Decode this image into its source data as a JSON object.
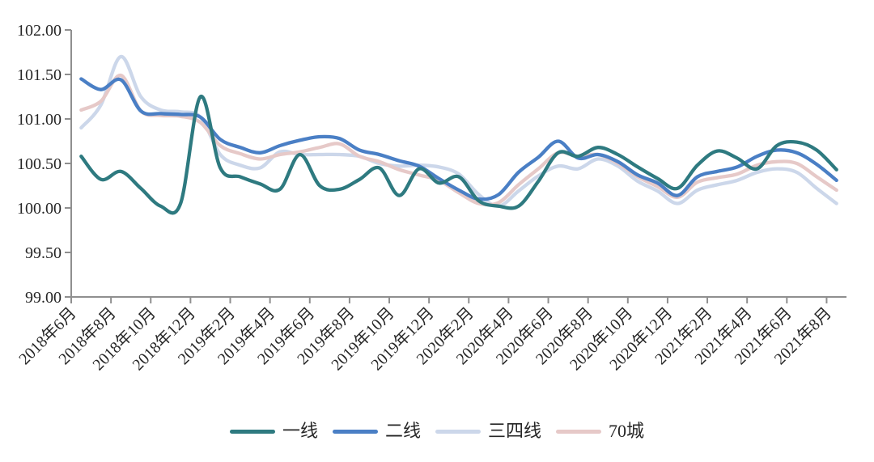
{
  "colors": {
    "background": "#ffffff",
    "axis": "#8f8f8f",
    "text": "#262626"
  },
  "chart_data": {
    "type": "line",
    "smooth": true,
    "grid": false,
    "legend_position": "bottom",
    "ylim": [
      99,
      102
    ],
    "y_ticks": [
      99,
      99.5,
      100,
      100.5,
      101,
      101.5,
      102
    ],
    "y_tick_labels": [
      "99.00",
      "99.50",
      "100.00",
      "100.50",
      "101.00",
      "101.50",
      "102.00"
    ],
    "x_tick_every": 2,
    "x": [
      "2018年6月",
      "2018年7月",
      "2018年8月",
      "2018年9月",
      "2018年10月",
      "2018年11月",
      "2018年12月",
      "2019年1月",
      "2019年2月",
      "2019年3月",
      "2019年4月",
      "2019年5月",
      "2019年6月",
      "2019年7月",
      "2019年8月",
      "2019年9月",
      "2019年10月",
      "2019年11月",
      "2019年12月",
      "2020年1月",
      "2020年2月",
      "2020年3月",
      "2020年4月",
      "2020年5月",
      "2020年6月",
      "2020年7月",
      "2020年8月",
      "2020年9月",
      "2020年10月",
      "2020年11月",
      "2020年12月",
      "2021年1月",
      "2021年2月",
      "2021年3月",
      "2021年4月",
      "2021年5月",
      "2021年6月",
      "2021年7月",
      "2021年8月"
    ],
    "x_tick_labels": [
      "2018年6月",
      "2018年8月",
      "2018年10月",
      "2018年12月",
      "2019年2月",
      "2019年4月",
      "2019年6月",
      "2019年8月",
      "2019年10月",
      "2019年12月",
      "2020年2月",
      "2020年4月",
      "2020年6月",
      "2020年8月",
      "2020年10月",
      "2020年12月",
      "2021年2月",
      "2021年4月",
      "2021年6月",
      "2021年8月"
    ],
    "series": [
      {
        "name": "一线",
        "color": "#2e7a80",
        "values": [
          100.58,
          100.32,
          100.41,
          100.22,
          100.02,
          100.05,
          101.25,
          100.45,
          100.35,
          100.27,
          100.21,
          100.6,
          100.25,
          100.21,
          100.32,
          100.45,
          100.14,
          100.44,
          100.28,
          100.35,
          100.08,
          100.02,
          100.02,
          100.3,
          100.62,
          100.58,
          100.68,
          100.6,
          100.46,
          100.33,
          100.22,
          100.48,
          100.64,
          100.56,
          100.44,
          100.7,
          100.74,
          100.65,
          100.43
        ]
      },
      {
        "name": "二线",
        "color": "#4a7fc5",
        "values": [
          101.45,
          101.33,
          101.44,
          101.09,
          101.06,
          101.05,
          101.02,
          100.77,
          100.68,
          100.62,
          100.7,
          100.76,
          100.8,
          100.78,
          100.65,
          100.6,
          100.53,
          100.47,
          100.33,
          100.2,
          100.1,
          100.15,
          100.4,
          100.57,
          100.75,
          100.56,
          100.6,
          100.52,
          100.37,
          100.28,
          100.14,
          100.35,
          100.41,
          100.46,
          100.58,
          100.65,
          100.62,
          100.49,
          100.31
        ]
      },
      {
        "name": "三四线",
        "color": "#ccd7ea",
        "values": [
          100.9,
          101.16,
          101.7,
          101.25,
          101.1,
          101.08,
          101.02,
          100.6,
          100.48,
          100.45,
          100.63,
          100.6,
          100.6,
          100.6,
          100.58,
          100.5,
          100.47,
          100.48,
          100.46,
          100.38,
          100.15,
          100.02,
          100.19,
          100.36,
          100.47,
          100.44,
          100.55,
          100.47,
          100.3,
          100.19,
          100.05,
          100.2,
          100.26,
          100.31,
          100.4,
          100.44,
          100.4,
          100.22,
          100.05
        ]
      },
      {
        "name": "70城",
        "color": "#e6c9c8",
        "values": [
          101.1,
          101.2,
          101.49,
          101.09,
          101.04,
          101.03,
          100.96,
          100.7,
          100.61,
          100.55,
          100.6,
          100.63,
          100.68,
          100.72,
          100.58,
          100.52,
          100.43,
          100.37,
          100.31,
          100.17,
          100.05,
          100.06,
          100.26,
          100.44,
          100.62,
          100.58,
          100.6,
          100.5,
          100.35,
          100.24,
          100.12,
          100.29,
          100.34,
          100.38,
          100.48,
          100.52,
          100.5,
          100.35,
          100.2
        ]
      }
    ]
  }
}
